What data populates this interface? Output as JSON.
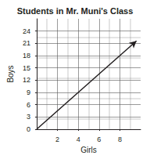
{
  "chart_data": {
    "type": "line",
    "title": "Students in Mr. Muni's Class",
    "x_label": "Girls",
    "y_label": "Boys",
    "x": [
      0,
      4,
      8,
      9.6
    ],
    "values": [
      0,
      9,
      18,
      21.6
    ],
    "color": "#231f20",
    "marker": "arrow",
    "xlim": [
      0,
      10
    ],
    "xticks": [
      2,
      4,
      6,
      8
    ],
    "ylim": [
      0,
      27
    ],
    "yticks": [
      0,
      3,
      6,
      9,
      12,
      15,
      18,
      21,
      24
    ],
    "grid": true
  }
}
